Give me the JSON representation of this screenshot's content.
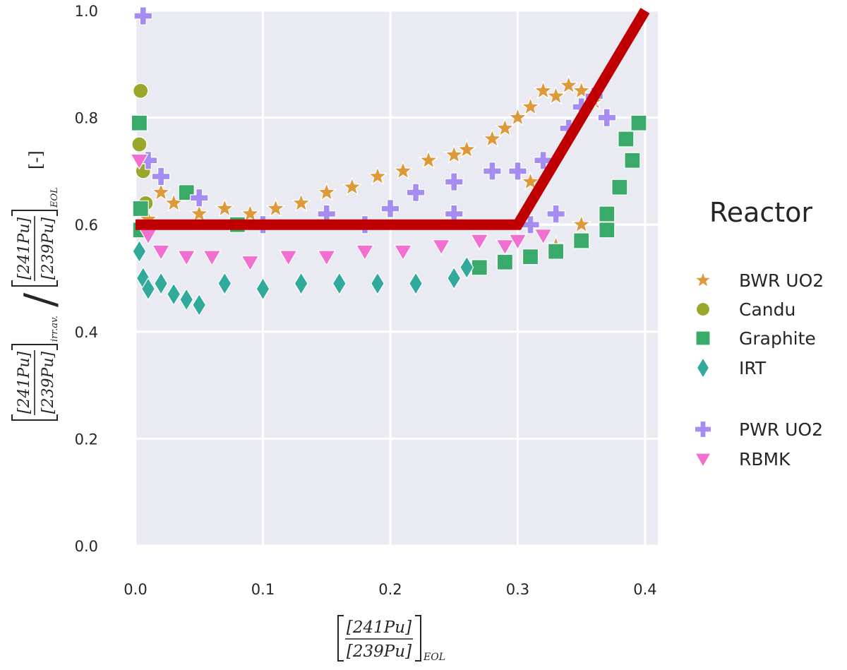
{
  "chart_data": {
    "type": "scatter",
    "title": "",
    "xlabel": {
      "numerator": "[241Pu]",
      "denominator": "[239Pu]",
      "subscript": "EOL"
    },
    "ylabel": {
      "left_subscript": "irr.av.",
      "right_subscript": "EOL",
      "unit": "[-]"
    },
    "xlim": [
      0.0,
      0.41
    ],
    "ylim": [
      0.0,
      1.0
    ],
    "xticks": [
      "0.0",
      "0.1",
      "0.2",
      "0.3",
      "0.4"
    ],
    "yticks": [
      "0.0",
      "0.2",
      "0.4",
      "0.6",
      "0.8",
      "1.0"
    ],
    "grid": true,
    "legend": {
      "title": "Reactor",
      "placement": "right",
      "entries": [
        "BWR UO2",
        "Candu",
        "Graphite",
        "IRT",
        "PWR UO2",
        "RBMK"
      ]
    },
    "threshold_line": {
      "color": "#c00000",
      "x": [
        0.0,
        0.3,
        0.4
      ],
      "y": [
        0.6,
        0.6,
        1.0
      ]
    },
    "series": [
      {
        "name": "BWR UO2",
        "marker": "star",
        "color": "#dd9a3b",
        "x": [
          0.01,
          0.02,
          0.03,
          0.05,
          0.07,
          0.09,
          0.11,
          0.13,
          0.15,
          0.17,
          0.19,
          0.21,
          0.23,
          0.25,
          0.26,
          0.28,
          0.29,
          0.3,
          0.31,
          0.32,
          0.33,
          0.34,
          0.35,
          0.36,
          0.35,
          0.33,
          0.31
        ],
        "y": [
          0.61,
          0.66,
          0.64,
          0.62,
          0.63,
          0.62,
          0.63,
          0.64,
          0.66,
          0.67,
          0.69,
          0.7,
          0.72,
          0.73,
          0.74,
          0.76,
          0.78,
          0.8,
          0.82,
          0.85,
          0.84,
          0.86,
          0.85,
          0.83,
          0.6,
          0.56,
          0.68
        ]
      },
      {
        "name": "Candu",
        "marker": "circle",
        "color": "#9aa62c",
        "x": [
          0.004,
          0.003,
          0.006,
          0.008
        ],
        "y": [
          0.85,
          0.75,
          0.7,
          0.64
        ]
      },
      {
        "name": "Graphite",
        "marker": "square",
        "color": "#3aaa6a",
        "x": [
          0.003,
          0.004,
          0.004,
          0.04,
          0.08,
          0.27,
          0.29,
          0.31,
          0.33,
          0.35,
          0.37,
          0.38,
          0.39,
          0.395,
          0.385,
          0.37
        ],
        "y": [
          0.79,
          0.63,
          0.59,
          0.66,
          0.6,
          0.52,
          0.53,
          0.54,
          0.55,
          0.57,
          0.62,
          0.67,
          0.72,
          0.79,
          0.76,
          0.59
        ]
      },
      {
        "name": "IRT",
        "marker": "diamond",
        "color": "#31aa9c",
        "x": [
          0.003,
          0.006,
          0.01,
          0.02,
          0.03,
          0.04,
          0.05,
          0.07,
          0.1,
          0.13,
          0.16,
          0.19,
          0.22,
          0.25,
          0.26
        ],
        "y": [
          0.55,
          0.5,
          0.48,
          0.49,
          0.47,
          0.46,
          0.45,
          0.49,
          0.48,
          0.49,
          0.49,
          0.49,
          0.49,
          0.5,
          0.52
        ]
      },
      {
        "name": "PWR UO2",
        "marker": "plus",
        "color": "#a58cf0",
        "x": [
          0.006,
          0.01,
          0.02,
          0.05,
          0.1,
          0.15,
          0.2,
          0.22,
          0.25,
          0.28,
          0.3,
          0.32,
          0.34,
          0.35,
          0.36,
          0.37,
          0.33,
          0.31,
          0.25,
          0.18
        ],
        "y": [
          0.99,
          0.72,
          0.69,
          0.65,
          0.6,
          0.62,
          0.63,
          0.66,
          0.68,
          0.7,
          0.7,
          0.72,
          0.78,
          0.82,
          0.84,
          0.8,
          0.62,
          0.6,
          0.62,
          0.6
        ]
      },
      {
        "name": "RBMK",
        "marker": "triangle-down",
        "color": "#f06fd0",
        "x": [
          0.003,
          0.01,
          0.02,
          0.04,
          0.06,
          0.09,
          0.12,
          0.15,
          0.18,
          0.21,
          0.24,
          0.27,
          0.29,
          0.3,
          0.32
        ],
        "y": [
          0.72,
          0.58,
          0.55,
          0.54,
          0.54,
          0.53,
          0.54,
          0.54,
          0.55,
          0.55,
          0.56,
          0.57,
          0.56,
          0.57,
          0.58
        ]
      }
    ]
  }
}
